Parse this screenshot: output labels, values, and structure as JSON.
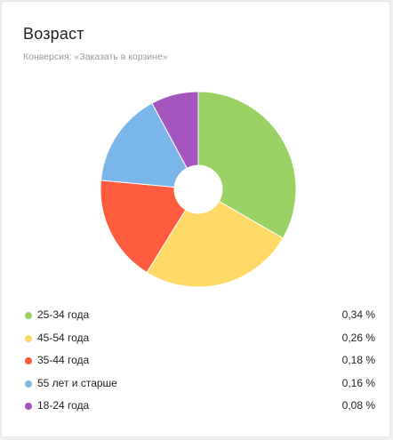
{
  "widget": {
    "title": "Возраст",
    "subtitle": "Конверсия: «Заказать в корзине»"
  },
  "chart_data": {
    "type": "pie",
    "donut": true,
    "title": "Возраст",
    "subtitle": "Конверсия: «Заказать в корзине»",
    "legend_position": "bottom",
    "categories": [
      "25-34 года",
      "45-54 года",
      "35-44 года",
      "55 лет и старше",
      "18-24 года"
    ],
    "values": [
      0.34,
      0.26,
      0.18,
      0.16,
      0.08
    ],
    "value_labels": [
      "0,34 %",
      "0,26 %",
      "0,18 %",
      "0,16 %",
      "0,08 %"
    ],
    "colors": [
      "#9ad265",
      "#ffd965",
      "#ff5b3e",
      "#7ab6ea",
      "#a356be"
    ]
  }
}
